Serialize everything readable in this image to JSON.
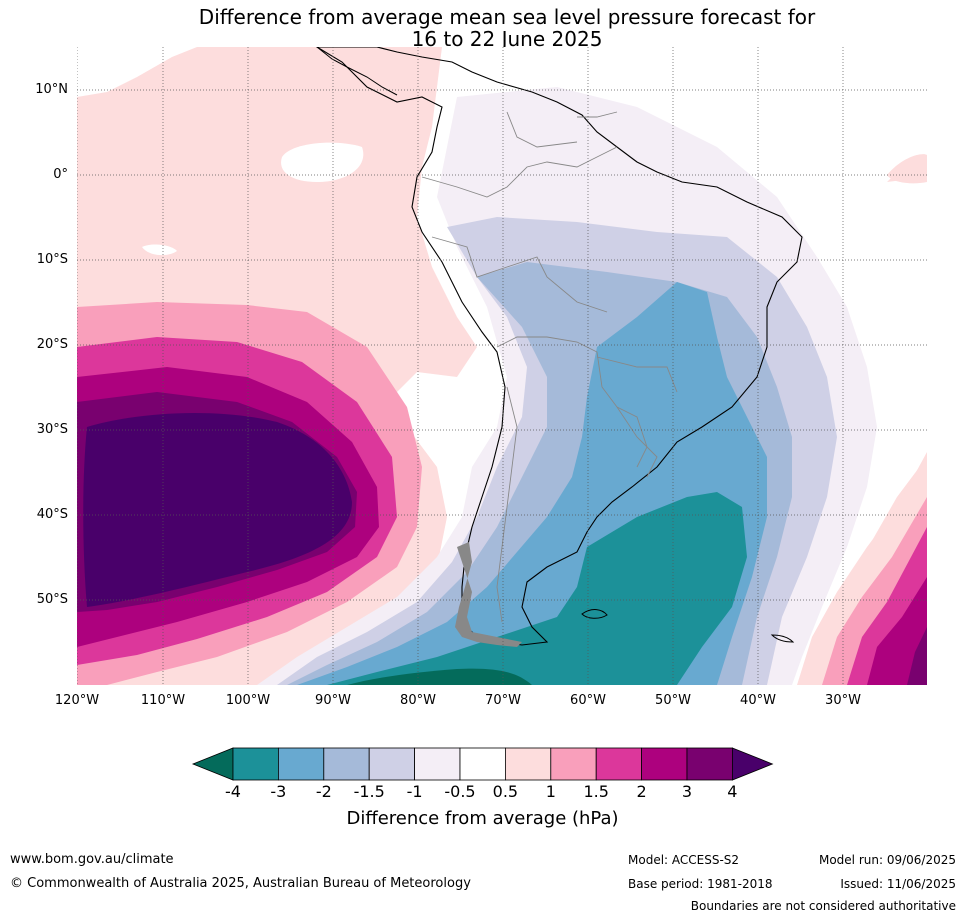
{
  "title": {
    "line1": "Difference from average mean sea level pressure forecast for",
    "line2": "16 to 22 June 2025"
  },
  "map": {
    "lat_labels": [
      "10°N",
      "0°",
      "10°S",
      "20°S",
      "30°S",
      "40°S",
      "50°S"
    ],
    "lon_labels": [
      "120°W",
      "110°W",
      "100°W",
      "90°W",
      "80°W",
      "70°W",
      "60°W",
      "50°W",
      "40°W",
      "30°W"
    ]
  },
  "colorbar": {
    "ticks": [
      "-4",
      "-3",
      "-2",
      "-1.5",
      "-1",
      "-0.5",
      "0.5",
      "1",
      "1.5",
      "2",
      "3",
      "4"
    ],
    "colors": [
      "#1c9199",
      "#68a9d0",
      "#a5bad9",
      "#cfd0e6",
      "#f4eef6",
      "#ffffff",
      "#fddddd",
      "#f99fbb",
      "#dc379b",
      "#ad017e",
      "#79016f"
    ],
    "under_color": "#046b5b",
    "over_color": "#49006a",
    "label": "Difference from average (hPa)"
  },
  "footer": {
    "website": "www.bom.gov.au/climate",
    "copyright": "© Commonwealth of Australia 2025, Australian Bureau of Meteorology",
    "model": "Model: ACCESS-S2",
    "base_period": "Base period: 1981-2018",
    "model_run": "Model run: 09/06/2025",
    "issued": "Issued: 11/06/2025",
    "boundaries": "Boundaries are not considered authoritative"
  }
}
